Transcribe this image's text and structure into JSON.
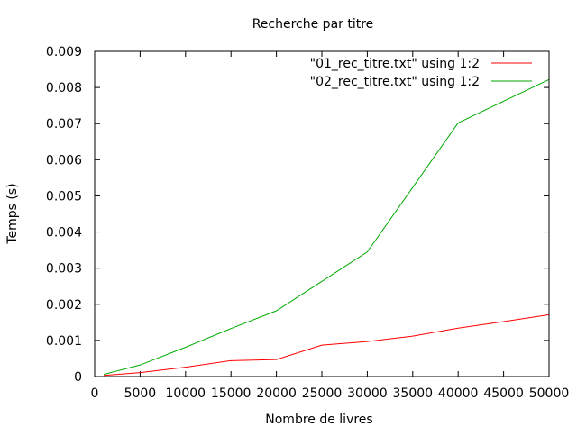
{
  "chart_data": {
    "type": "line",
    "title": "Recherche par titre",
    "xlabel": "Nombre de livres",
    "ylabel": "Temps (s)",
    "xlim": [
      0,
      50000
    ],
    "ylim": [
      0,
      0.009
    ],
    "x_ticks": [
      "0",
      "5000",
      "10000",
      "15000",
      "20000",
      "25000",
      "30000",
      "35000",
      "40000",
      "45000",
      "50000"
    ],
    "y_ticks": [
      "0",
      "0.001",
      "0.002",
      "0.003",
      "0.004",
      "0.005",
      "0.006",
      "0.007",
      "0.008",
      "0.009"
    ],
    "grid": false,
    "legend_position": "top-right",
    "series": [
      {
        "name": "\"01_rec_titre.txt\" using 1:2",
        "color": "#ff0000",
        "x": [
          1000,
          5000,
          10000,
          15000,
          20000,
          25000,
          30000,
          35000,
          40000,
          45000,
          50000
        ],
        "y": [
          3e-05,
          0.00011,
          0.00026,
          0.00044,
          0.00047,
          0.00087,
          0.00097,
          0.00112,
          0.00134,
          0.00152,
          0.00171
        ]
      },
      {
        "name": "\"02_rec_titre.txt\" using 1:2",
        "color": "#00aa00",
        "x": [
          1000,
          5000,
          10000,
          15000,
          20000,
          30000,
          40000,
          50000
        ],
        "y": [
          6e-05,
          0.00032,
          0.00081,
          0.00133,
          0.00182,
          0.00345,
          0.00702,
          0.00822
        ]
      }
    ]
  }
}
